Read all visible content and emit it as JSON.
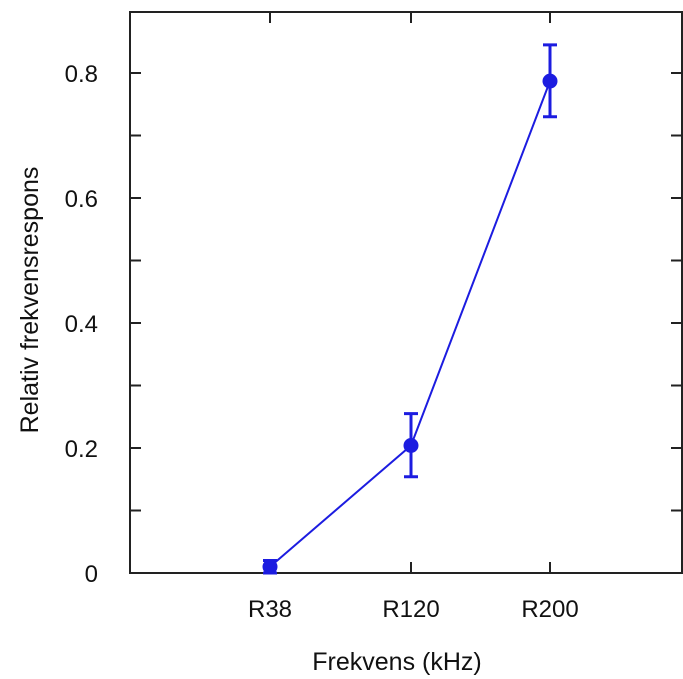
{
  "chart_data": {
    "type": "line",
    "categories": [
      "R38",
      "R120",
      "R200"
    ],
    "series": [
      {
        "values": [
          0.01,
          0.204,
          0.787
        ],
        "error_low": [
          0.0,
          0.154,
          0.73
        ],
        "error_high": [
          0.02,
          0.255,
          0.845
        ]
      }
    ],
    "xlabel": "Frekvens (kHz)",
    "ylabel": "Relativ frekvensrespons",
    "ylim": [
      0,
      0.9
    ],
    "yticks": [
      0,
      0.2,
      0.4,
      0.6,
      0.8
    ],
    "ytick_labels": [
      "0",
      "0.2",
      "0.4",
      "0.6",
      "0.8"
    ],
    "yminor_ticks": [
      0.1,
      0.3,
      0.5,
      0.7
    ],
    "grid": false,
    "legend": "none",
    "colors": {
      "series": "#1c1ce0",
      "axis": "#222222"
    }
  }
}
